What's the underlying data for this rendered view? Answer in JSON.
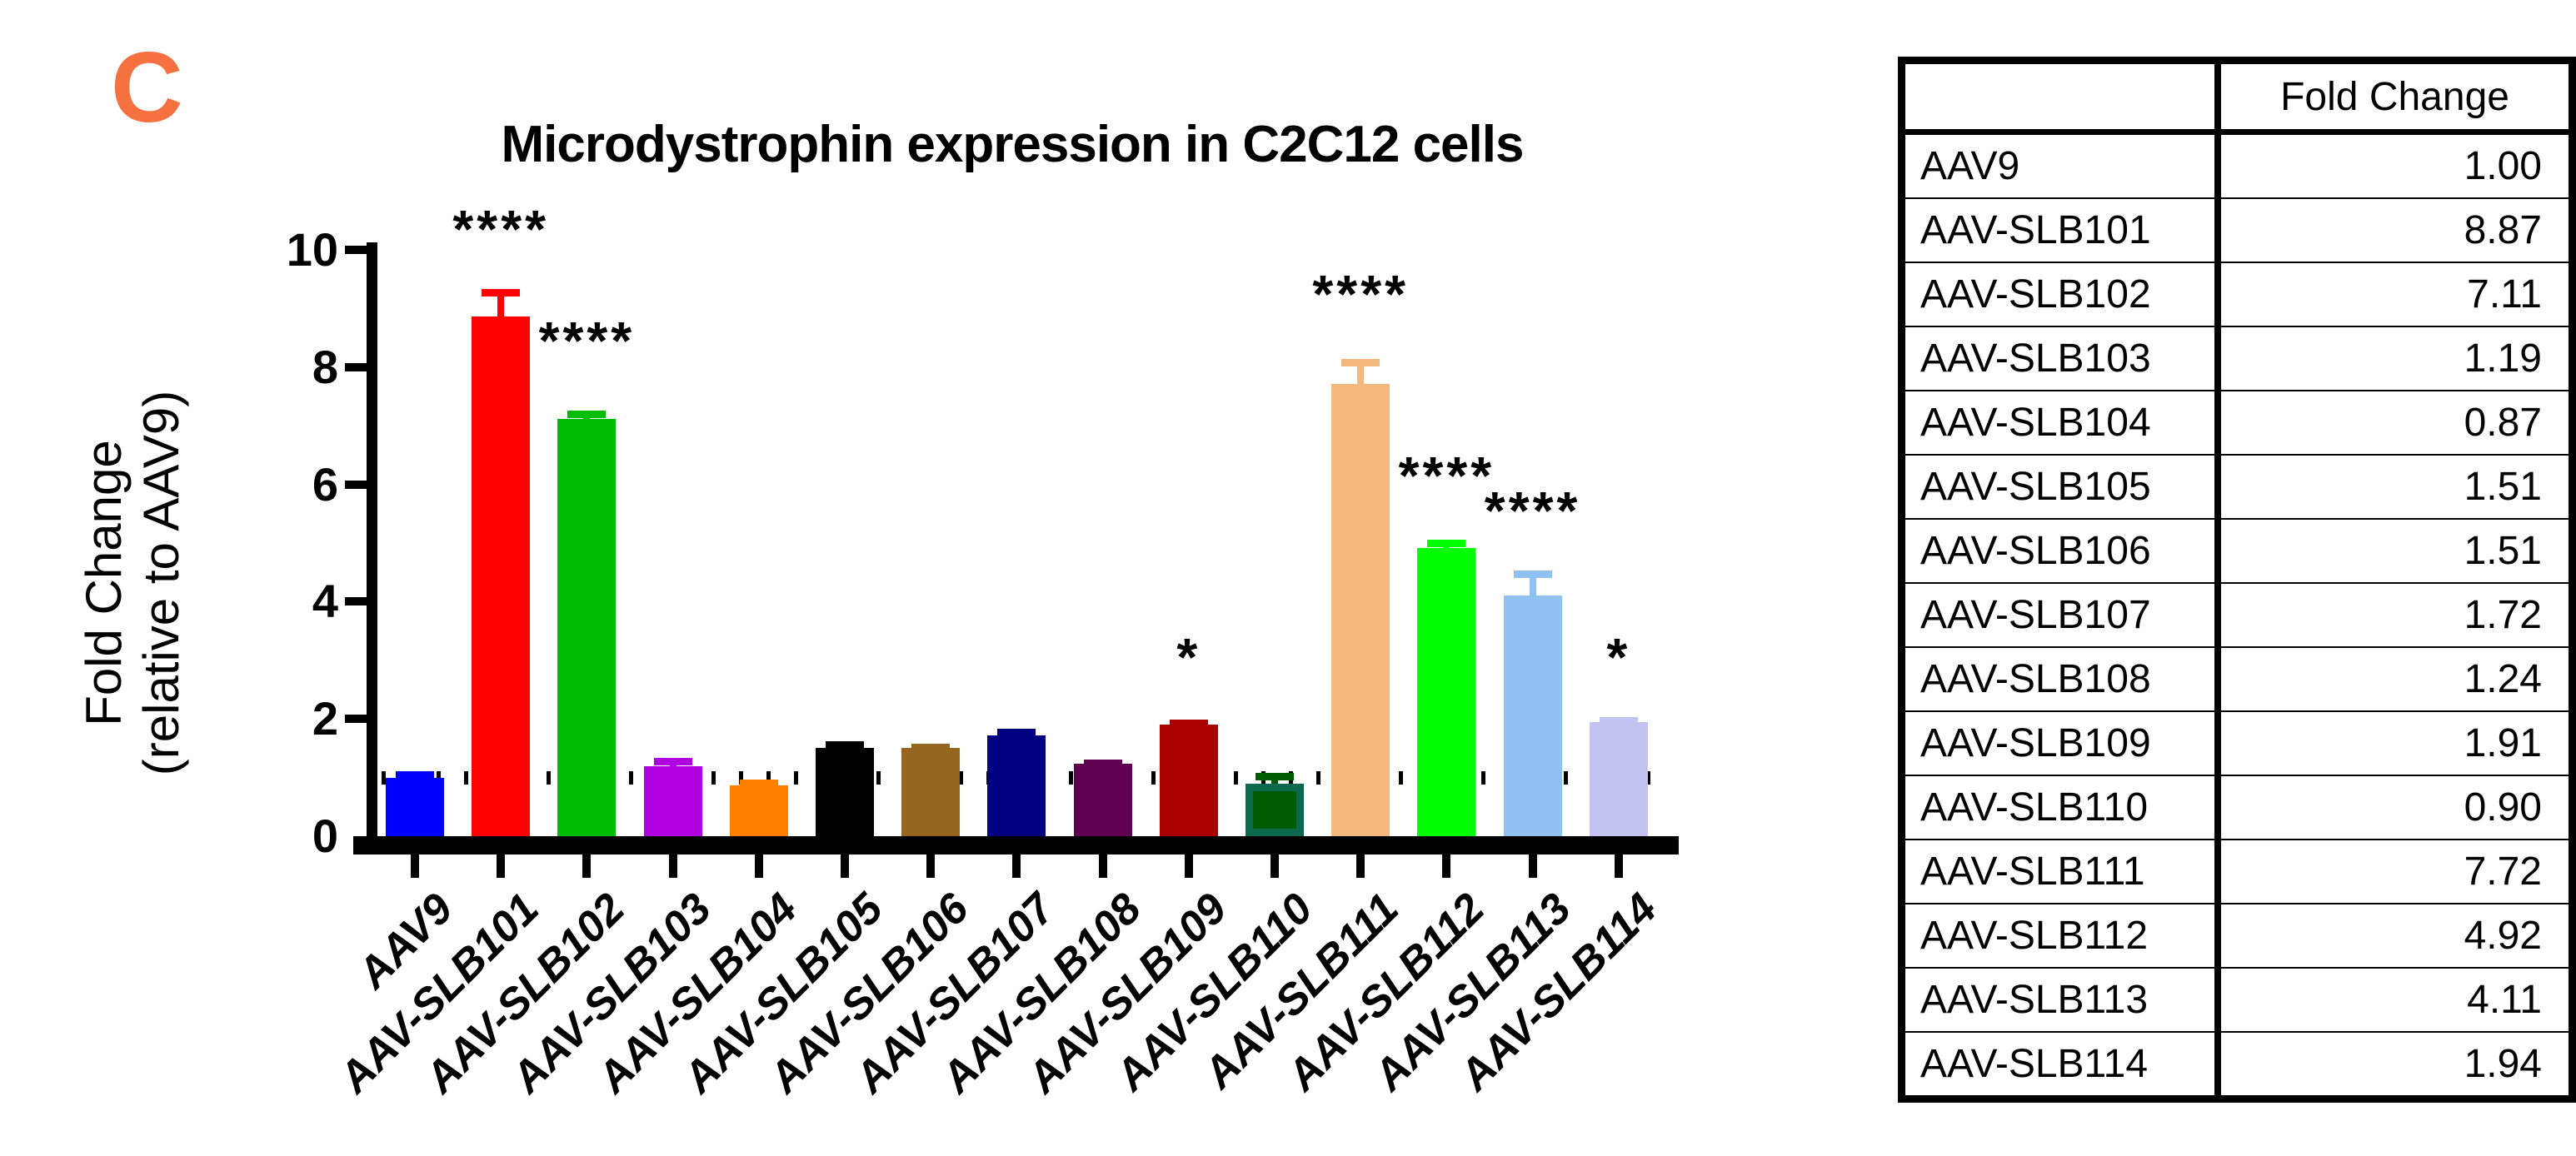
{
  "panel_label": "C",
  "accent_color": "#F5713F",
  "chart_data": {
    "type": "bar",
    "title": "Microdystrophin expression in C2C12 cells",
    "ylabel_line1": "Fold Change",
    "ylabel_line2": "(relative to AAV9)",
    "ylim": [
      0,
      10
    ],
    "yticks": [
      0,
      2,
      4,
      6,
      8,
      10
    ],
    "reference_line_y": 1,
    "reference_line_style": "dotted",
    "grid": false,
    "legend": "none",
    "categories": [
      "AAV9",
      "AAV-SLB101",
      "AAV-SLB102",
      "AAV-SLB103",
      "AAV-SLB104",
      "AAV-SLB105",
      "AAV-SLB106",
      "AAV-SLB107",
      "AAV-SLB108",
      "AAV-SLB109",
      "AAV-SLB110",
      "AAV-SLB111",
      "AAV-SLB112",
      "AAV-SLB113",
      "AAV-SLB114"
    ],
    "values": [
      1.0,
      8.87,
      7.11,
      1.19,
      0.87,
      1.51,
      1.51,
      1.72,
      1.24,
      1.91,
      0.9,
      7.72,
      4.92,
      4.11,
      1.94
    ],
    "errors_upper": [
      0.1,
      0.45,
      0.14,
      0.13,
      0.08,
      0.09,
      0.05,
      0.1,
      0.05,
      0.07,
      0.17,
      0.4,
      0.12,
      0.4,
      0.08
    ],
    "bar_colors": [
      "#0000FF",
      "#FF0000",
      "#00BC00",
      "#B000E0",
      "#FF8000",
      "#000000",
      "#96661E",
      "#000080",
      "#5F0050",
      "#AA0000",
      "#005C00",
      "#F2B87C",
      "#00FF00",
      "#8FC1F2",
      "#C3C3F2"
    ],
    "bar_border_colors": [
      null,
      null,
      null,
      null,
      null,
      null,
      null,
      null,
      null,
      null,
      "#0C694D",
      null,
      null,
      null,
      null
    ],
    "significance": [
      {
        "index": 1,
        "label": "****",
        "y_units": 10.75
      },
      {
        "index": 2,
        "label": "****",
        "y_units": 8.85
      },
      {
        "index": 9,
        "label": "*",
        "y_units": 3.45
      },
      {
        "index": 11,
        "label": "****",
        "y_units": 9.65
      },
      {
        "index": 12,
        "label": "****",
        "y_units": 6.55
      },
      {
        "index": 13,
        "label": "****",
        "y_units": 5.95
      },
      {
        "index": 14,
        "label": "*",
        "y_units": 3.45
      }
    ]
  },
  "table": {
    "header": [
      "",
      "Fold Change"
    ],
    "rows": [
      [
        "AAV9",
        "1.00"
      ],
      [
        "AAV-SLB101",
        "8.87"
      ],
      [
        "AAV-SLB102",
        "7.11"
      ],
      [
        "AAV-SLB103",
        "1.19"
      ],
      [
        "AAV-SLB104",
        "0.87"
      ],
      [
        "AAV-SLB105",
        "1.51"
      ],
      [
        "AAV-SLB106",
        "1.51"
      ],
      [
        "AAV-SLB107",
        "1.72"
      ],
      [
        "AAV-SLB108",
        "1.24"
      ],
      [
        "AAV-SLB109",
        "1.91"
      ],
      [
        "AAV-SLB110",
        "0.90"
      ],
      [
        "AAV-SLB111",
        "7.72"
      ],
      [
        "AAV-SLB112",
        "4.92"
      ],
      [
        "AAV-SLB113",
        "4.11"
      ],
      [
        "AAV-SLB114",
        "1.94"
      ]
    ]
  }
}
